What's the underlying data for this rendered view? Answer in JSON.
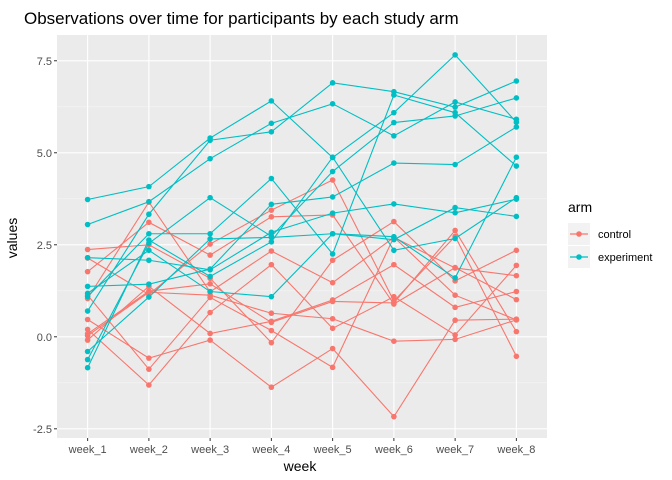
{
  "chart_data": {
    "type": "line",
    "title": "Observations over time for participants by each study arm",
    "xlabel": "week",
    "ylabel": "values",
    "categories": [
      "week_1",
      "week_2",
      "week_3",
      "week_4",
      "week_5",
      "week_6",
      "week_7",
      "week_8"
    ],
    "yticks": [
      -2.5,
      0.0,
      2.5,
      5.0,
      7.5
    ],
    "ytick_labels": [
      "-2.5",
      "0.0",
      "2.5",
      "5.0",
      "7.5"
    ],
    "ylim": [
      -2.75,
      8.2
    ],
    "grid": true,
    "legend": {
      "title": "arm",
      "placement": "right",
      "entries": [
        "control",
        "experiment"
      ]
    },
    "colors": {
      "control": "#F8766D",
      "experiment": "#00BFC4",
      "panel": "#EBEBEB",
      "grid_major": "#FFFFFF",
      "grid_minor": "#F4F4F4"
    },
    "series": [
      {
        "arm": "control",
        "values": [
          0.2,
          -1.31,
          0.66,
          1.96,
          0.23,
          1.09,
          0.05,
          1.94
        ]
      },
      {
        "arm": "control",
        "values": [
          1.13,
          -0.88,
          1.07,
          0.17,
          -0.83,
          2.71,
          1.13,
          0.46
        ]
      },
      {
        "arm": "control",
        "values": [
          1.77,
          3.11,
          2.22,
          3.26,
          3.31,
          0.89,
          1.88,
          1.01
        ]
      },
      {
        "arm": "control",
        "values": [
          1.04,
          3.66,
          1.22,
          2.33,
          1.47,
          2.7,
          1.87,
          1.66
        ]
      },
      {
        "arm": "control",
        "values": [
          0.47,
          -0.58,
          -0.09,
          -1.37,
          -0.32,
          -2.17,
          0.45,
          0.48
        ]
      },
      {
        "arm": "control",
        "values": [
          2.37,
          2.5,
          1.59,
          -0.16,
          2.08,
          3.13,
          1.52,
          2.35
        ]
      },
      {
        "arm": "control",
        "values": [
          0.03,
          1.21,
          1.13,
          0.64,
          0.49,
          -0.12,
          -0.07,
          0.46
        ]
      },
      {
        "arm": "control",
        "values": [
          -0.09,
          1.37,
          0.09,
          0.42,
          1.0,
          1.96,
          0.8,
          1.23
        ]
      },
      {
        "arm": "control",
        "values": [
          0.08,
          1.24,
          1.44,
          0.39,
          0.96,
          0.92,
          2.89,
          0.14
        ]
      },
      {
        "arm": "control",
        "values": [
          2.14,
          1.15,
          2.52,
          3.44,
          4.26,
          0.97,
          2.73,
          -0.53
        ]
      },
      {
        "arm": "experiment",
        "values": [
          3.05,
          3.67,
          4.84,
          5.8,
          6.33,
          5.46,
          6.38,
          5.91
        ]
      },
      {
        "arm": "experiment",
        "values": [
          -0.84,
          2.63,
          1.64,
          2.58,
          4.88,
          2.35,
          2.67,
          3.78
        ]
      },
      {
        "arm": "experiment",
        "values": [
          2.15,
          2.08,
          1.82,
          2.84,
          3.36,
          3.61,
          3.37,
          3.74
        ]
      },
      {
        "arm": "experiment",
        "values": [
          -0.62,
          2.54,
          3.78,
          2.73,
          4.49,
          5.82,
          6.0,
          6.49
        ]
      },
      {
        "arm": "experiment",
        "values": [
          0.7,
          3.33,
          5.34,
          5.57,
          6.9,
          6.66,
          6.24,
          6.95
        ]
      },
      {
        "arm": "experiment",
        "values": [
          3.73,
          4.08,
          5.4,
          6.41,
          4.87,
          6.09,
          7.66,
          5.83
        ]
      },
      {
        "arm": "experiment",
        "values": [
          1.18,
          2.35,
          1.23,
          1.09,
          2.8,
          2.72,
          1.6,
          4.88
        ]
      },
      {
        "arm": "experiment",
        "values": [
          1.37,
          1.43,
          1.84,
          3.6,
          3.8,
          4.72,
          4.68,
          5.7
        ]
      },
      {
        "arm": "experiment",
        "values": [
          -0.4,
          1.08,
          2.66,
          2.7,
          2.8,
          2.64,
          3.51,
          3.27
        ]
      },
      {
        "arm": "experiment",
        "values": [
          1.09,
          2.8,
          2.8,
          4.3,
          2.25,
          6.57,
          6.09,
          4.64
        ]
      }
    ]
  }
}
